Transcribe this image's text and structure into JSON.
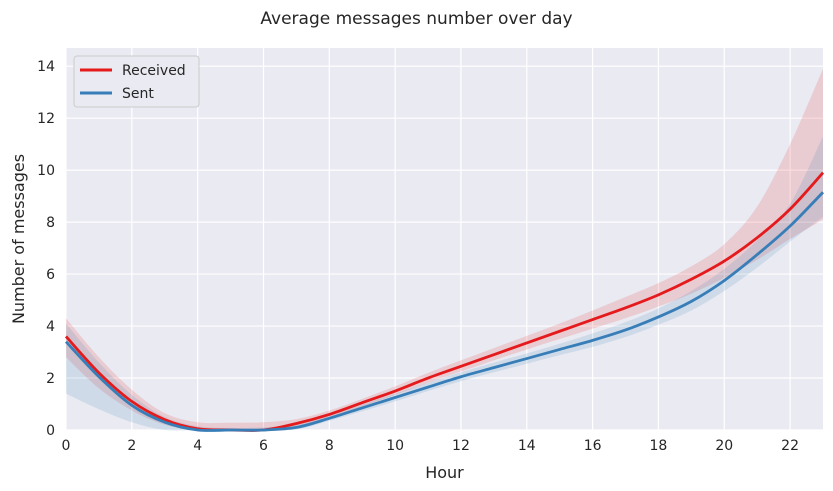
{
  "chart_data": {
    "type": "line",
    "title": "Average messages number over day",
    "xlabel": "Hour",
    "ylabel": "Number of messages",
    "xlim": [
      0,
      23
    ],
    "ylim": [
      0,
      14.7
    ],
    "x_ticks": [
      0,
      2,
      4,
      6,
      8,
      10,
      12,
      14,
      16,
      18,
      20,
      22
    ],
    "y_ticks": [
      0,
      2,
      4,
      6,
      8,
      10,
      12,
      14
    ],
    "grid": true,
    "legend_position": "top-left",
    "x": [
      0,
      1,
      2,
      3,
      4,
      5,
      6,
      7,
      8,
      9,
      10,
      11,
      12,
      13,
      14,
      15,
      16,
      17,
      18,
      19,
      20,
      21,
      22,
      23
    ],
    "series": [
      {
        "name": "Received",
        "color": "#e41a1c",
        "values": [
          3.6,
          2.2,
          1.1,
          0.4,
          0.05,
          0.0,
          0.0,
          0.25,
          0.6,
          1.05,
          1.5,
          2.0,
          2.45,
          2.9,
          3.35,
          3.8,
          4.25,
          4.7,
          5.2,
          5.8,
          6.5,
          7.4,
          8.5,
          9.9
        ],
        "ci_low": [
          2.8,
          1.6,
          0.75,
          0.2,
          0.0,
          0.0,
          0.0,
          0.15,
          0.48,
          0.9,
          1.35,
          1.82,
          2.25,
          2.68,
          3.1,
          3.5,
          3.9,
          4.3,
          4.75,
          5.25,
          5.85,
          6.55,
          7.35,
          8.1
        ],
        "ci_high": [
          4.3,
          2.8,
          1.55,
          0.65,
          0.3,
          0.28,
          0.3,
          0.42,
          0.75,
          1.2,
          1.68,
          2.2,
          2.68,
          3.15,
          3.62,
          4.1,
          4.6,
          5.12,
          5.65,
          6.3,
          7.15,
          8.6,
          11.0,
          13.9
        ]
      },
      {
        "name": "Sent",
        "color": "#377eb8",
        "values": [
          3.4,
          2.05,
          0.95,
          0.3,
          0.0,
          0.0,
          0.0,
          0.1,
          0.45,
          0.85,
          1.25,
          1.65,
          2.05,
          2.4,
          2.75,
          3.1,
          3.45,
          3.85,
          4.35,
          4.95,
          5.75,
          6.75,
          7.85,
          9.15
        ],
        "ci_low": [
          1.4,
          0.8,
          0.3,
          0.0,
          0.0,
          0.0,
          0.0,
          0.02,
          0.35,
          0.72,
          1.1,
          1.5,
          1.88,
          2.22,
          2.55,
          2.88,
          3.2,
          3.58,
          4.05,
          4.6,
          5.35,
          6.25,
          7.25,
          8.2
        ],
        "ci_high": [
          4.1,
          2.6,
          1.35,
          0.5,
          0.15,
          0.08,
          0.1,
          0.22,
          0.55,
          0.98,
          1.4,
          1.82,
          2.22,
          2.6,
          2.95,
          3.32,
          3.72,
          4.15,
          4.68,
          5.35,
          6.2,
          7.3,
          8.7,
          11.3
        ]
      }
    ]
  }
}
